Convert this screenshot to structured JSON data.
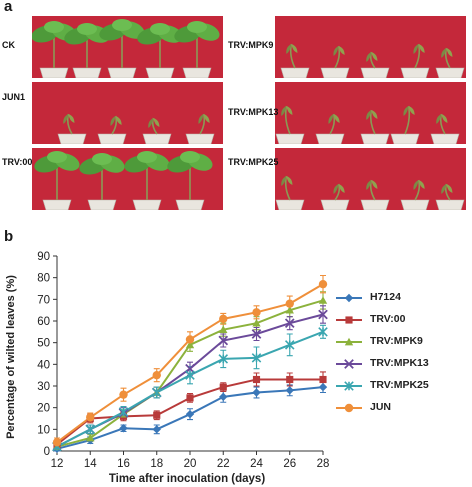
{
  "panel_a": {
    "letter": "a",
    "photos": [
      {
        "label": "CK"
      },
      {
        "label": "JUN1"
      },
      {
        "label": "TRV:00"
      },
      {
        "label": "TRV:MPK9"
      },
      {
        "label": "TRV:MPK13"
      },
      {
        "label": "TRV:MPK25"
      }
    ]
  },
  "panel_b": {
    "letter": "b"
  },
  "colors": {
    "photo_background": "#c4283a",
    "H7124": "#3a77b8",
    "TRV:00": "#b83a3a",
    "TRV:MPK9": "#8cb23c",
    "TRV:MPK13": "#6b4a9a",
    "TRV:MPK25": "#3aa6b0",
    "JUN": "#ef8f3a"
  },
  "chart_data": {
    "type": "line",
    "xlabel": "Time after inoculation (days)",
    "ylabel": "Percentage of wilted leaves (%)",
    "x": [
      12,
      14,
      16,
      18,
      20,
      22,
      24,
      26,
      28
    ],
    "xlim": [
      12,
      28
    ],
    "ylim": [
      0,
      90
    ],
    "yticks": [
      0,
      10,
      20,
      30,
      40,
      50,
      60,
      70,
      80,
      90
    ],
    "grid": false,
    "legend_position": "right",
    "error_bars": true,
    "series": [
      {
        "name": "H7124",
        "marker": "diamond",
        "values": [
          1,
          5,
          10.5,
          10,
          17,
          25,
          27,
          28,
          29.5
        ],
        "errors": [
          1,
          1.5,
          1.5,
          2,
          2.5,
          2.5,
          2.5,
          2.5,
          2.5
        ]
      },
      {
        "name": "TRV:00",
        "marker": "square",
        "values": [
          3,
          15,
          16,
          16.5,
          24.5,
          29.5,
          33,
          33,
          33
        ],
        "errors": [
          1,
          2,
          2,
          2,
          2,
          2,
          3,
          3,
          3.5
        ]
      },
      {
        "name": "TRV:MPK9",
        "marker": "triangle",
        "values": [
          2,
          6,
          17,
          27,
          49,
          56,
          59,
          65,
          69.5
        ],
        "errors": [
          1,
          1.5,
          2,
          2.5,
          3,
          3,
          3,
          3,
          4
        ]
      },
      {
        "name": "TRV:MPK13",
        "marker": "x",
        "values": [
          2,
          10,
          17.5,
          27,
          38,
          51,
          54,
          59,
          63
        ],
        "errors": [
          1,
          2,
          2.5,
          2.5,
          3,
          3,
          3,
          3,
          4
        ]
      },
      {
        "name": "TRV:MPK25",
        "marker": "star",
        "values": [
          2,
          10,
          18,
          27,
          35,
          42.5,
          43,
          49,
          55
        ],
        "errors": [
          1,
          2,
          2.5,
          2.5,
          4,
          4,
          5,
          5,
          3
        ]
      },
      {
        "name": "JUN",
        "marker": "circle",
        "values": [
          4,
          15.5,
          26,
          35,
          51.5,
          61,
          64,
          68,
          77
        ],
        "errors": [
          2,
          2,
          3,
          3,
          3.5,
          2.5,
          3,
          3.5,
          4
        ]
      }
    ]
  }
}
